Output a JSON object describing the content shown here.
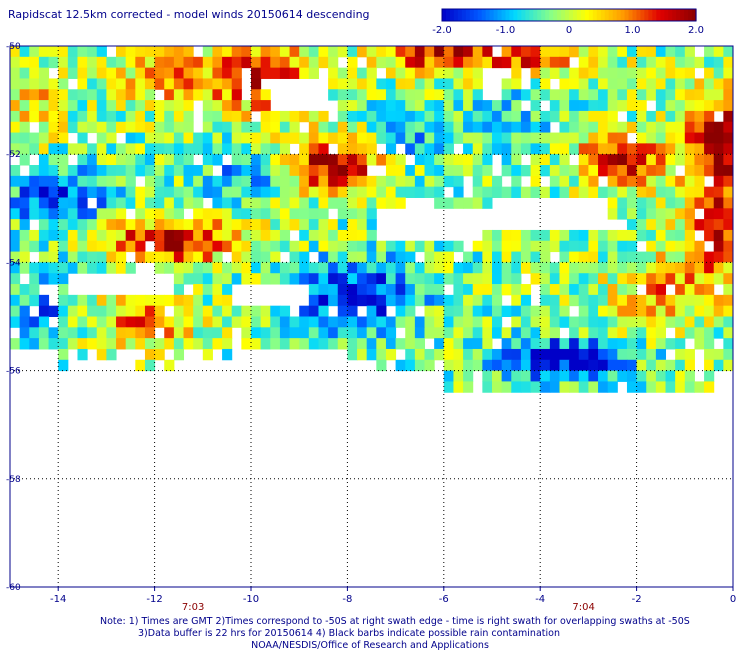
{
  "title": "Rapidscat 12.5km corrected - model winds 20150614 descending",
  "notes": [
    "Note: 1) Times are GMT 2)Times correspond to -50S at right swath edge - time is right swath for overlapping swaths at -50S",
    "3)Data buffer is 22 hrs for 20150614 4) Black barbs indicate possible rain contamination",
    "NOAA/NESDIS/Office of Research and Applications"
  ],
  "chart_data": {
    "type": "heatmap",
    "title": "Rapidscat 12.5km corrected - model winds 20150614 descending",
    "xlim": [
      -15,
      0
    ],
    "ylim": [
      -60,
      -50
    ],
    "x_ticks": [
      -14,
      -12,
      -10,
      -8,
      -6,
      -4,
      -2,
      0
    ],
    "x_tick_labels": [
      "-14",
      "-12",
      "-10",
      "-8",
      "-6",
      "-4",
      "-2",
      "0"
    ],
    "y_ticks": [
      -50,
      -52,
      -54,
      -56,
      -58,
      -60
    ],
    "y_tick_labels": [
      "-50",
      "-52",
      "-54",
      "-56",
      "-58",
      "-60"
    ],
    "grid": true,
    "time_labels": [
      {
        "text": "7:03",
        "x": -11.2
      },
      {
        "text": "7:04",
        "x": -3.1
      }
    ],
    "colorbar": {
      "range": [
        -2.0,
        2.0
      ],
      "ticks": [
        -2.0,
        -1.0,
        0,
        1.0,
        2.0
      ],
      "tick_labels": [
        "-2.0",
        "-1.0",
        "0",
        "1.0",
        "2.0"
      ],
      "colors": [
        "#0000c8",
        "#0055ff",
        "#00d8ff",
        "#88ff88",
        "#ffff00",
        "#ff9900",
        "#e00000",
        "#8b0000"
      ]
    },
    "blobs": [
      {
        "lon": -9.8,
        "lat": -50.6,
        "value": 1.6,
        "sx": 1.2,
        "sy": 0.7
      },
      {
        "lon": -8.3,
        "lat": -52.2,
        "value": 2.2,
        "sx": 1.2,
        "sy": 0.5
      },
      {
        "lon": -11.6,
        "lat": -53.6,
        "value": 2.0,
        "sx": 1.5,
        "sy": 0.4
      },
      {
        "lon": -11.8,
        "lat": -50.6,
        "value": 1.0,
        "sx": 1.0,
        "sy": 0.6
      },
      {
        "lon": -6.2,
        "lat": -50.1,
        "value": 1.8,
        "sx": 1.2,
        "sy": 0.4
      },
      {
        "lon": -4.0,
        "lat": -50.2,
        "value": 1.4,
        "sx": 1.4,
        "sy": 0.4
      },
      {
        "lon": -2.3,
        "lat": -52.1,
        "value": 2.0,
        "sx": 0.9,
        "sy": 0.5
      },
      {
        "lon": -0.2,
        "lat": -51.8,
        "value": 2.2,
        "sx": 0.8,
        "sy": 1.0
      },
      {
        "lon": -0.3,
        "lat": -53.6,
        "value": 1.5,
        "sx": 0.7,
        "sy": 1.0
      },
      {
        "lon": -1.5,
        "lat": -54.5,
        "value": 1.2,
        "sx": 0.8,
        "sy": 0.6
      },
      {
        "lon": -12.2,
        "lat": -55.1,
        "value": 1.2,
        "sx": 1.0,
        "sy": 0.6
      },
      {
        "lon": -14.4,
        "lat": -51.1,
        "value": 0.8,
        "sx": 0.6,
        "sy": 0.6
      },
      {
        "lon": -7.8,
        "lat": -54.6,
        "value": -1.6,
        "sx": 1.3,
        "sy": 0.6
      },
      {
        "lon": -14.0,
        "lat": -52.8,
        "value": -1.4,
        "sx": 1.0,
        "sy": 0.5
      },
      {
        "lon": -10.0,
        "lat": -52.3,
        "value": -1.0,
        "sx": 1.0,
        "sy": 0.5
      },
      {
        "lon": -3.6,
        "lat": -55.8,
        "value": -1.7,
        "sx": 1.3,
        "sy": 0.4
      },
      {
        "lon": -6.8,
        "lat": -51.8,
        "value": -0.8,
        "sx": 0.8,
        "sy": 0.6
      },
      {
        "lon": -4.6,
        "lat": -51.3,
        "value": -0.5,
        "sx": 0.8,
        "sy": 0.6
      },
      {
        "lon": -14.3,
        "lat": -54.7,
        "value": -1.0,
        "sx": 0.5,
        "sy": 0.7
      },
      {
        "lon": -2.6,
        "lat": -54.8,
        "value": 0.3,
        "sx": 0.8,
        "sy": 0.6
      }
    ]
  }
}
